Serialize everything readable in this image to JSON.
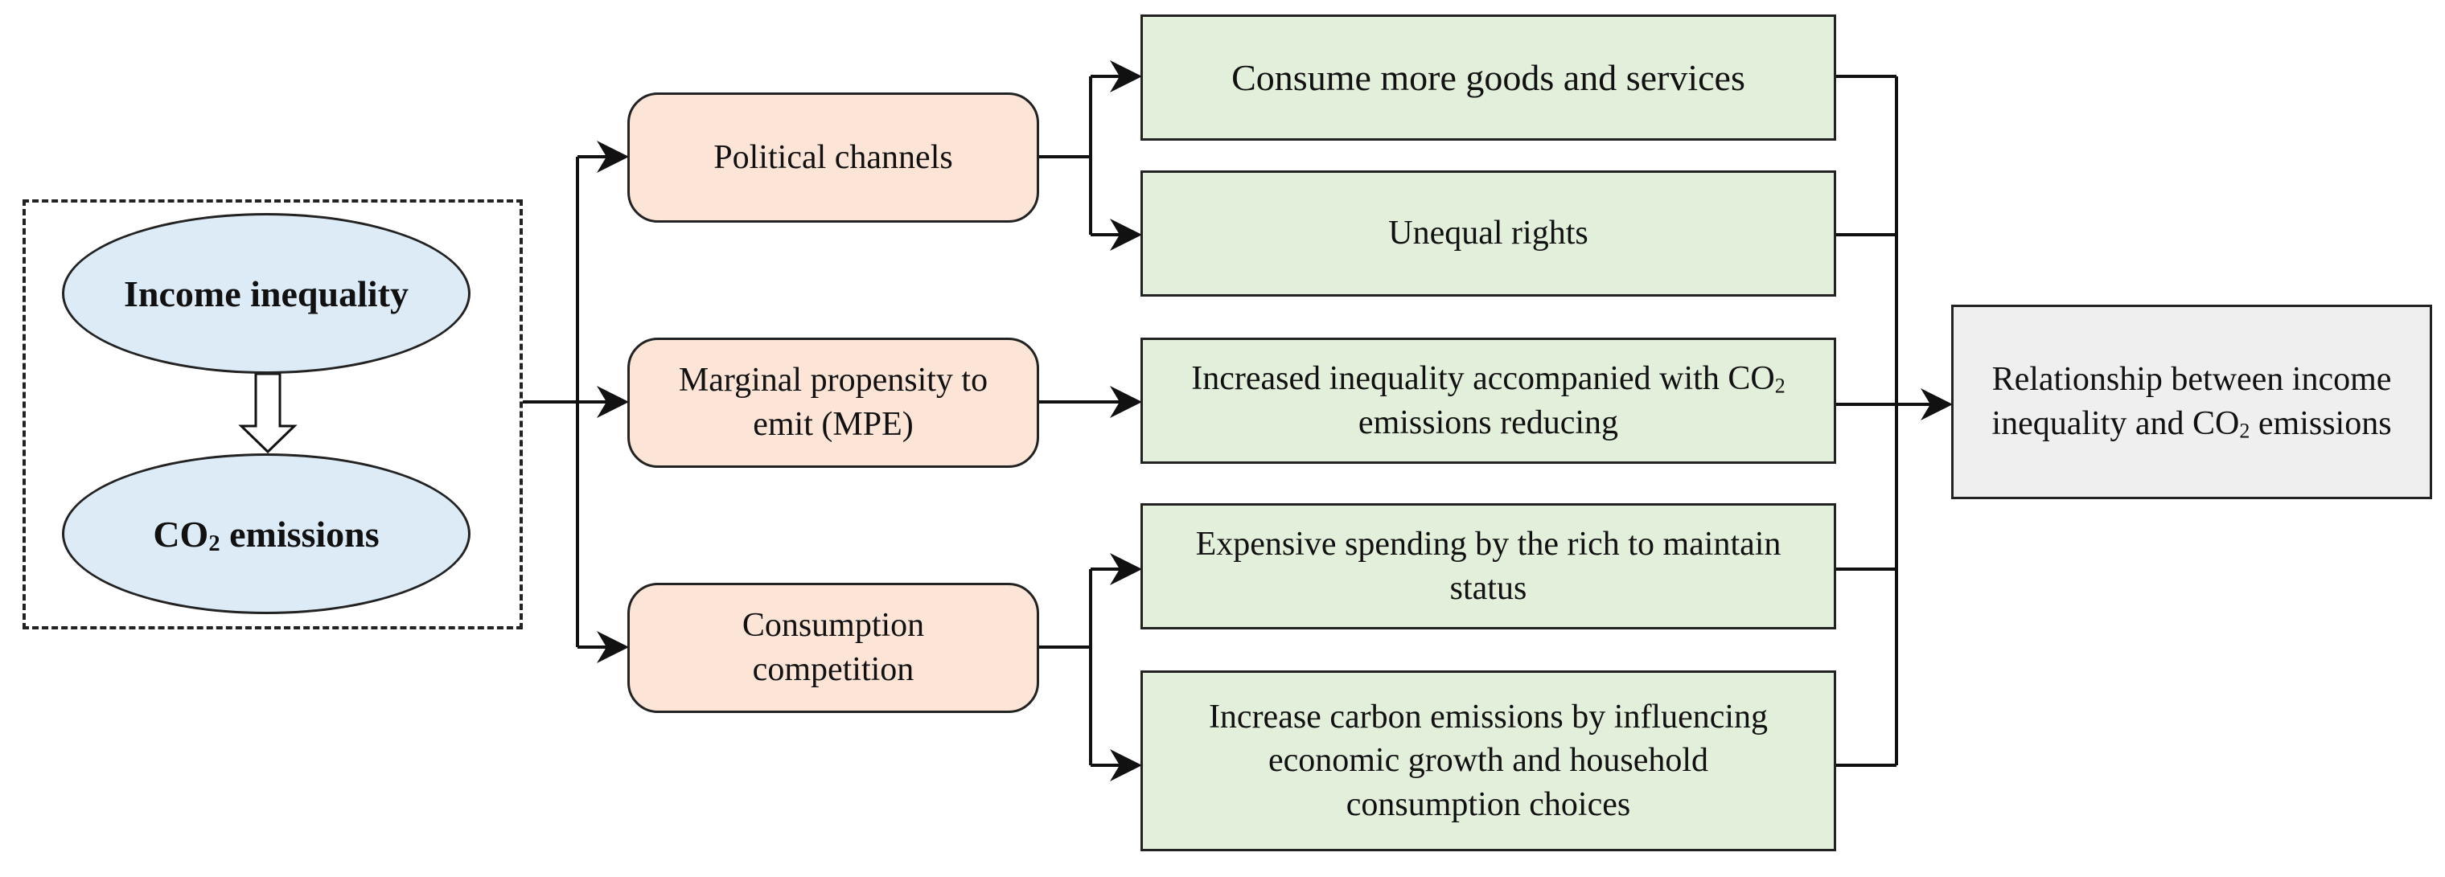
{
  "left_group": {
    "top_ellipse": "Income inequality",
    "bottom_ellipse_pre": "CO",
    "bottom_ellipse_sub": "2",
    "bottom_ellipse_post": " emissions"
  },
  "channels": {
    "political": "Political channels",
    "mpe_line1": "Marginal propensity to",
    "mpe_line2": "emit (MPE)",
    "consumption_line1": "Consumption",
    "consumption_line2": "competition"
  },
  "effects": {
    "consume_more": "Consume more goods and services",
    "unequal_rights": "Unequal rights",
    "increased_line1_pre": "Increased inequality accompanied with CO",
    "increased_line1_sub": "2",
    "increased_line2": "emissions reducing",
    "expensive_line1": "Expensive spending by the rich to maintain",
    "expensive_line2": "status",
    "increase_line1": "Increase carbon emissions by influencing",
    "increase_line2": "economic growth and household",
    "increase_line3": "consumption choices"
  },
  "result": {
    "line1": "Relationship between income",
    "line2_pre": "inequality and CO",
    "line2_sub": "2",
    "line2_post": " emissions"
  }
}
